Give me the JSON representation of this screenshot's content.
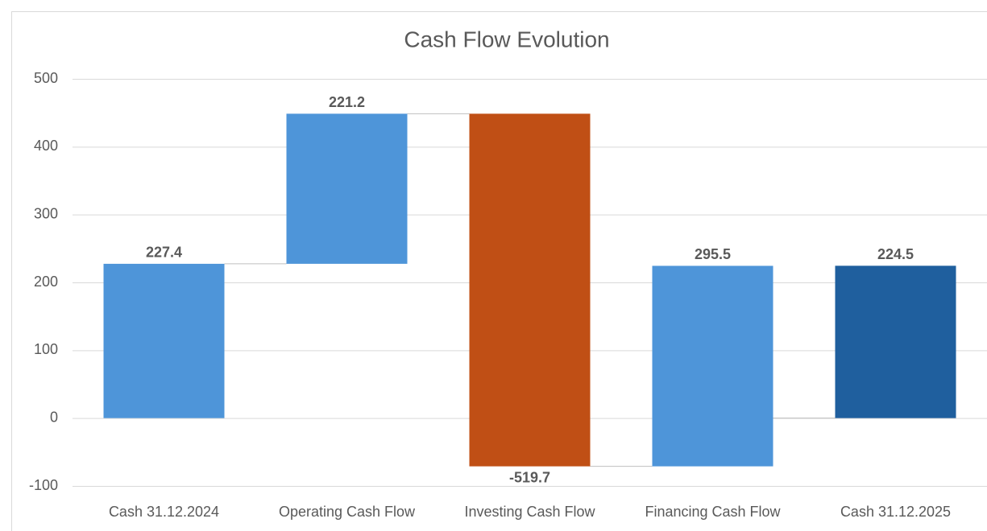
{
  "chart_data": {
    "type": "waterfall",
    "title": "Cash Flow Evolution",
    "categories": [
      "Cash 31.12.2024",
      "Operating Cash Flow",
      "Investing Cash Flow",
      "Financing Cash Flow",
      "Cash 31.12.2025"
    ],
    "values": [
      227.4,
      221.2,
      -519.7,
      295.5,
      224.5
    ],
    "totals": [
      false,
      false,
      false,
      false,
      true
    ],
    "colors": [
      "#4e95d9",
      "#4e95d9",
      "#c04f15",
      "#4e95d9",
      "#1f5f9e"
    ],
    "ylim": [
      -100,
      500
    ],
    "yticks": [
      -100,
      0,
      100,
      200,
      300,
      400,
      500
    ],
    "grid": true
  }
}
